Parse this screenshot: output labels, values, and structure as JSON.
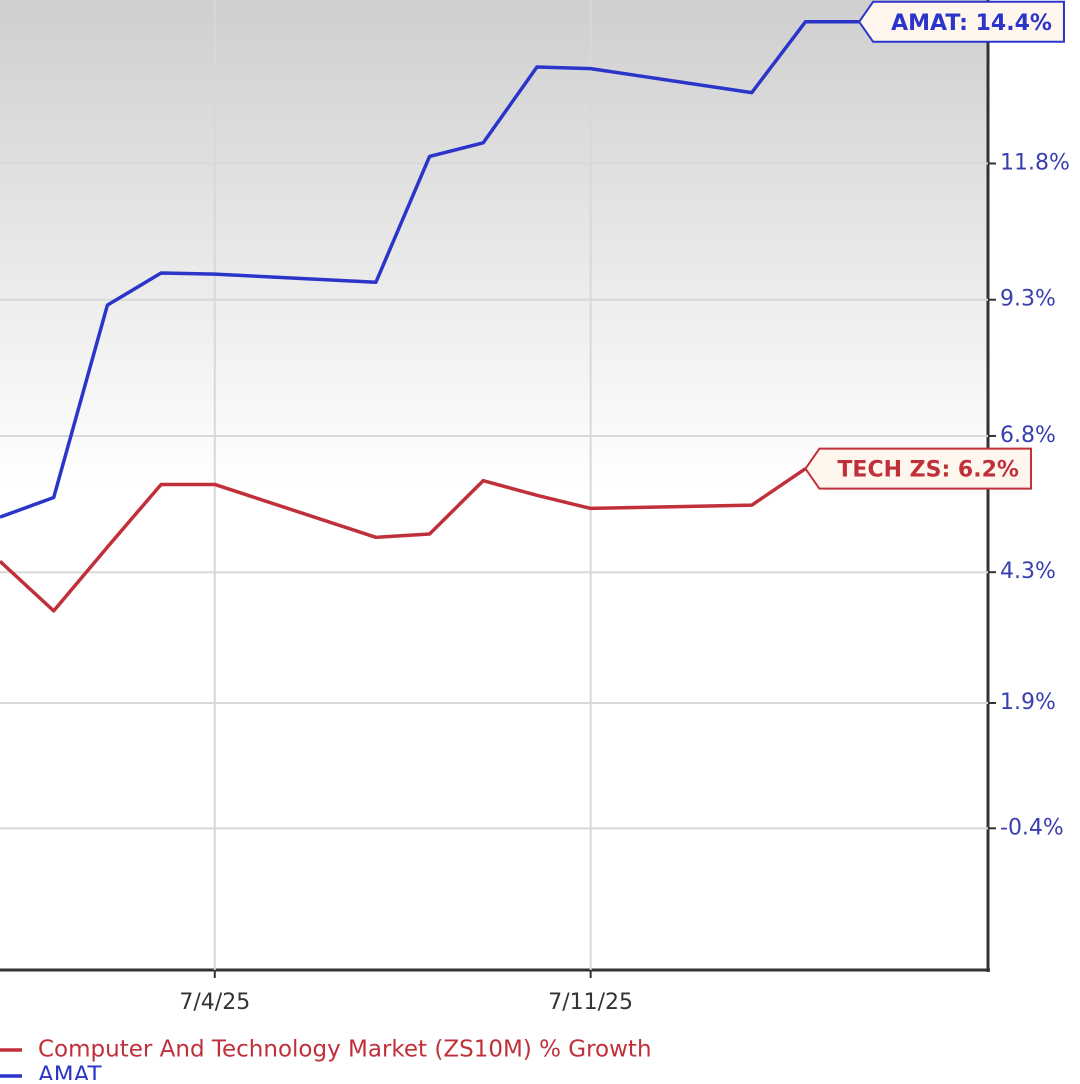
{
  "chart_data": {
    "type": "line",
    "x": [
      0,
      1,
      2,
      3,
      4,
      7,
      8,
      9,
      10,
      11,
      14,
      15,
      16
    ],
    "xlim": [
      0,
      18.4
    ],
    "xticks": [
      {
        "value": 4,
        "label": "7/4/25"
      },
      {
        "value": 11,
        "label": "7/11/25"
      }
    ],
    "ylim": [
      -3.0,
      14.8
    ],
    "yticks": [
      {
        "value": 11.8,
        "label": "11.8%"
      },
      {
        "value": 9.3,
        "label": "9.3%"
      },
      {
        "value": 6.8,
        "label": "6.8%"
      },
      {
        "value": 4.3,
        "label": "4.3%"
      },
      {
        "value": 1.9,
        "label": "1.9%"
      },
      {
        "value": -0.4,
        "label": "-0.4%"
      }
    ],
    "grid": true,
    "series": [
      {
        "name": "AMAT",
        "color": "#2b35c9",
        "values": [
          5.31,
          5.67,
          9.2,
          9.79,
          9.77,
          9.62,
          11.93,
          12.18,
          13.57,
          13.54,
          13.1,
          14.4,
          14.4
        ]
      },
      {
        "name": "Computer And Technology Market (ZS10M) % Growth",
        "color": "#c0303a",
        "values": [
          4.5,
          3.59,
          4.76,
          5.91,
          5.91,
          4.94,
          5.0,
          5.98,
          5.71,
          5.47,
          5.53,
          6.2,
          null
        ]
      }
    ],
    "annotations": [
      {
        "text": "AMAT: 14.4%",
        "series": 0
      },
      {
        "text": "TECH ZS: 6.2%",
        "series": 1
      }
    ]
  }
}
